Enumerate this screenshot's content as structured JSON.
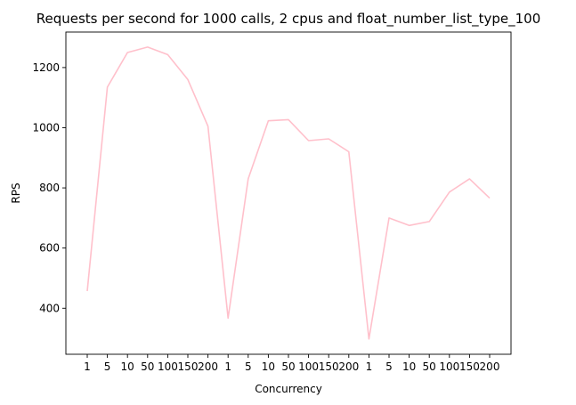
{
  "chart_data": {
    "type": "line",
    "title": "Requests per second for 1000 calls, 2 cpus and float_number_list_type_100",
    "xlabel": "Concurrency",
    "ylabel": "RPS",
    "categories": [
      "1",
      "5",
      "10",
      "50",
      "100",
      "150",
      "200",
      "1",
      "5",
      "10",
      "50",
      "100",
      "150",
      "200",
      "1",
      "5",
      "10",
      "50",
      "100",
      "150",
      "200"
    ],
    "series": [
      {
        "color": "#ffc0cb",
        "values": [
          457,
          1135,
          1250,
          1268,
          1243,
          1160,
          1005,
          367,
          830,
          1023,
          1027,
          957,
          963,
          920,
          298,
          700,
          675,
          688,
          786,
          830,
          766
        ]
      }
    ],
    "ylim": [
      247,
      1318
    ],
    "yticks": [
      400,
      600,
      800,
      1000,
      1200
    ],
    "grid": false,
    "legend": "none"
  }
}
